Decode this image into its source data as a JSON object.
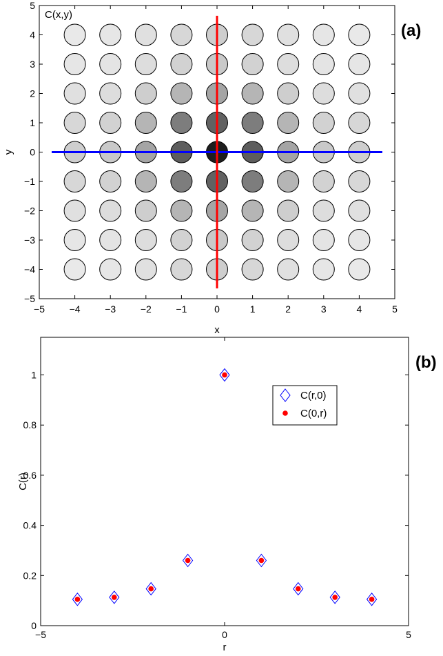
{
  "chart_data": [
    {
      "type": "heatmap",
      "panel_label": "(a)",
      "title": "C(x,y)",
      "xlabel": "x",
      "ylabel": "y",
      "xlim": [
        -5,
        5
      ],
      "ylim": [
        -5,
        5
      ],
      "xticks": [
        "−5",
        "−4",
        "−3",
        "−2",
        "−1",
        "0",
        "1",
        "2",
        "3",
        "4",
        "5"
      ],
      "yticks": [
        "−5",
        "−4",
        "−3",
        "−2",
        "−1",
        "0",
        "1",
        "2",
        "3",
        "4",
        "5"
      ],
      "x": [
        -4,
        -3,
        -2,
        -1,
        0,
        1,
        2,
        3,
        4
      ],
      "y": [
        4,
        3,
        2,
        1,
        0,
        -1,
        -2,
        -3,
        -4
      ],
      "values": [
        [
          0.1,
          0.11,
          0.14,
          0.18,
          0.22,
          0.18,
          0.14,
          0.11,
          0.1
        ],
        [
          0.11,
          0.12,
          0.15,
          0.2,
          0.24,
          0.2,
          0.15,
          0.12,
          0.11
        ],
        [
          0.14,
          0.15,
          0.22,
          0.33,
          0.4,
          0.33,
          0.22,
          0.15,
          0.14
        ],
        [
          0.18,
          0.2,
          0.33,
          0.58,
          0.7,
          0.58,
          0.33,
          0.2,
          0.18
        ],
        [
          0.22,
          0.24,
          0.4,
          0.72,
          1.0,
          0.72,
          0.4,
          0.24,
          0.22
        ],
        [
          0.18,
          0.2,
          0.33,
          0.58,
          0.7,
          0.58,
          0.33,
          0.2,
          0.18
        ],
        [
          0.14,
          0.15,
          0.22,
          0.33,
          0.4,
          0.33,
          0.22,
          0.15,
          0.14
        ],
        [
          0.11,
          0.12,
          0.15,
          0.2,
          0.24,
          0.2,
          0.15,
          0.12,
          0.11
        ],
        [
          0.1,
          0.11,
          0.14,
          0.18,
          0.22,
          0.18,
          0.14,
          0.11,
          0.1
        ]
      ],
      "lines": [
        {
          "orientation": "horizontal",
          "at": 0,
          "color": "#0000ff"
        },
        {
          "orientation": "vertical",
          "at": 0,
          "color": "#ff0000"
        }
      ]
    },
    {
      "type": "scatter",
      "panel_label": "(b)",
      "xlabel": "r",
      "ylabel": "C(r)",
      "xlim": [
        -5,
        5
      ],
      "ylim": [
        0,
        1.15
      ],
      "xticks": [
        "−5",
        "0",
        "5"
      ],
      "yticks": [
        "0",
        "0.2",
        "0.4",
        "0.6",
        "0.8",
        "1"
      ],
      "legend_position": "top-right",
      "series": [
        {
          "name": "C(r,0)",
          "marker": "diamond",
          "color": "#0000ff",
          "x": [
            -4,
            -3,
            -2,
            -1,
            0,
            1,
            2,
            3,
            4
          ],
          "y": [
            0.105,
            0.113,
            0.147,
            0.26,
            1.0,
            0.26,
            0.147,
            0.113,
            0.105
          ]
        },
        {
          "name": "C(0,r)",
          "marker": "dot",
          "color": "#ff0000",
          "x": [
            -4,
            -3,
            -2,
            -1,
            0,
            1,
            2,
            3,
            4
          ],
          "y": [
            0.105,
            0.113,
            0.147,
            0.26,
            1.0,
            0.26,
            0.147,
            0.113,
            0.105
          ]
        }
      ]
    }
  ]
}
